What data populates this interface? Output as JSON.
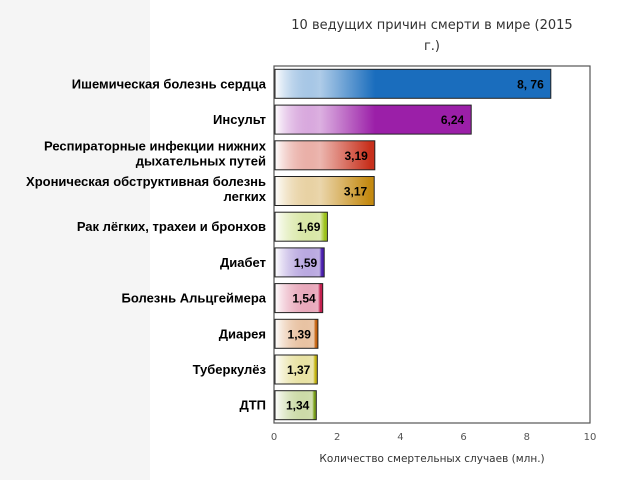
{
  "chart_data": {
    "type": "bar",
    "orientation": "horizontal",
    "title_lines": [
      "10 ведущих причин смерти в мире (2015",
      "г.)"
    ],
    "xlabel": "Количество смертельных случаев (млн.)",
    "xlim": [
      0,
      10
    ],
    "xticks": [
      "0",
      "2",
      "4",
      "6",
      "8",
      "10"
    ],
    "grid": false,
    "categories": [
      {
        "lines": [
          "Ишемическая болезнь сердца"
        ],
        "value": 8.76,
        "label": "8, 76",
        "color": "#1a6dbd"
      },
      {
        "lines": [
          "Инсульт"
        ],
        "value": 6.24,
        "label": "6,24",
        "color": "#9b1fa8"
      },
      {
        "lines": [
          "Респираторные инфекции нижних",
          "дыхательных путей"
        ],
        "value": 3.19,
        "label": "3,19",
        "color": "#c8301c"
      },
      {
        "lines": [
          "Хроническая обструктивная болезнь",
          "легких"
        ],
        "value": 3.17,
        "label": "3,17",
        "color": "#c48a12"
      },
      {
        "lines": [
          "Рак лёгких, трахеи и бронхов"
        ],
        "value": 1.69,
        "label": "1,69",
        "color": "#9cc21a"
      },
      {
        "lines": [
          "Диабет"
        ],
        "value": 1.59,
        "label": "1,59",
        "color": "#4a1fae"
      },
      {
        "lines": [
          "Болезнь Альцгеймера"
        ],
        "value": 1.54,
        "label": "1,54",
        "color": "#c41f4f"
      },
      {
        "lines": [
          "Диарея"
        ],
        "value": 1.39,
        "label": "1,39",
        "color": "#c4620f"
      },
      {
        "lines": [
          "Туберкулёз"
        ],
        "value": 1.37,
        "label": "1,37",
        "color": "#c4b412"
      },
      {
        "lines": [
          "ДТП"
        ],
        "value": 1.34,
        "label": "1,34",
        "color": "#7aa01c"
      }
    ]
  }
}
